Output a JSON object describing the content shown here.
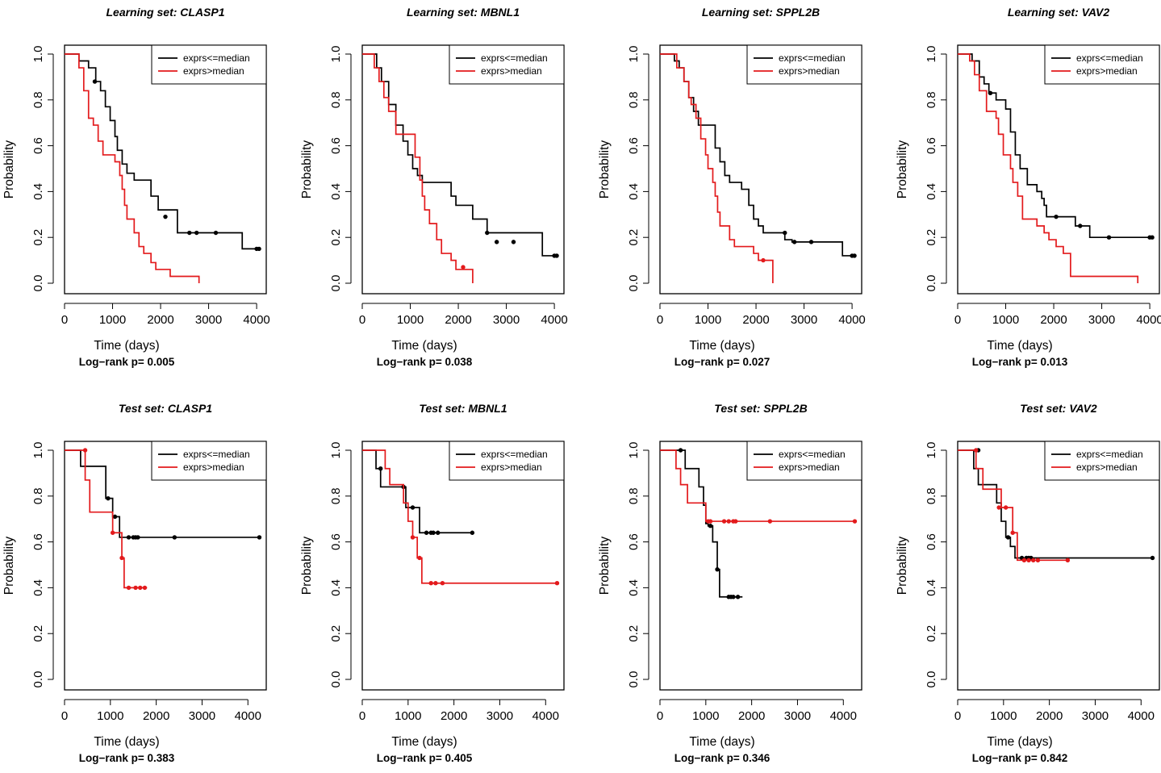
{
  "figure": {
    "legend_labels": [
      "exprs<=median",
      "exprs>median"
    ],
    "legend_position": "top-right",
    "series_colors": {
      "exprs<=median": "#000000",
      "exprs>median": "#e31a1c"
    }
  },
  "chart_data": [
    {
      "type": "line",
      "subtype": "kaplan-meier",
      "title": "Learning set:  CLASP1",
      "xlabel": "Time (days)",
      "ylabel": "Probability",
      "xlim": [
        0,
        4200
      ],
      "ylim": [
        0,
        1.0
      ],
      "xticks": [
        0,
        1000,
        2000,
        3000,
        4000
      ],
      "yticks": [
        0.0,
        0.2,
        0.4,
        0.6,
        0.8,
        1.0
      ],
      "ytick_labels": [
        "0.0",
        "0.2",
        "0.4",
        "0.6",
        "0.8",
        "1.0"
      ],
      "pvalue_text": "Log−rank p= 0.005",
      "series": [
        {
          "name": "exprs<=median",
          "color": "#000000",
          "x": [
            0,
            300,
            500,
            650,
            750,
            850,
            950,
            1050,
            1100,
            1200,
            1300,
            1450,
            1800,
            1950,
            2350,
            3700,
            4050
          ],
          "y": [
            1.0,
            0.97,
            0.94,
            0.88,
            0.84,
            0.77,
            0.71,
            0.64,
            0.58,
            0.52,
            0.48,
            0.45,
            0.38,
            0.32,
            0.22,
            0.15,
            0.15
          ],
          "censor_x": [
            630,
            2100,
            2600,
            2750,
            3150,
            4000,
            4050
          ],
          "censor_y": [
            0.88,
            0.29,
            0.22,
            0.22,
            0.22,
            0.15,
            0.15
          ]
        },
        {
          "name": "exprs>median",
          "color": "#e31a1c",
          "x": [
            0,
            300,
            400,
            500,
            600,
            700,
            800,
            1050,
            1150,
            1200,
            1250,
            1300,
            1450,
            1550,
            1650,
            1800,
            1900,
            2050,
            2200,
            2800,
            2800
          ],
          "y": [
            1.0,
            0.94,
            0.84,
            0.72,
            0.69,
            0.62,
            0.56,
            0.53,
            0.47,
            0.41,
            0.34,
            0.28,
            0.22,
            0.16,
            0.13,
            0.09,
            0.06,
            0.06,
            0.03,
            0.03,
            0.0
          ],
          "censor_x": [],
          "censor_y": []
        }
      ]
    },
    {
      "type": "line",
      "subtype": "kaplan-meier",
      "title": "Learning set:  MBNL1",
      "xlabel": "Time (days)",
      "ylabel": "Probability",
      "xlim": [
        0,
        4200
      ],
      "ylim": [
        0,
        1.0
      ],
      "xticks": [
        0,
        1000,
        2000,
        3000,
        4000
      ],
      "yticks": [
        0.0,
        0.2,
        0.4,
        0.6,
        0.8,
        1.0
      ],
      "ytick_labels": [
        "0.0",
        "0.2",
        "0.4",
        "0.6",
        "0.8",
        "1.0"
      ],
      "pvalue_text": "Log−rank p= 0.038",
      "series": [
        {
          "name": "exprs<=median",
          "color": "#000000",
          "x": [
            0,
            300,
            400,
            550,
            700,
            850,
            950,
            1050,
            1150,
            1250,
            1400,
            1850,
            1950,
            2300,
            2600,
            3750,
            4050
          ],
          "y": [
            1.0,
            0.94,
            0.88,
            0.78,
            0.69,
            0.62,
            0.56,
            0.5,
            0.47,
            0.44,
            0.44,
            0.38,
            0.34,
            0.28,
            0.22,
            0.12,
            0.12
          ],
          "censor_x": [
            2600,
            2800,
            3150,
            4000,
            4050
          ],
          "censor_y": [
            0.22,
            0.18,
            0.18,
            0.12,
            0.12
          ]
        },
        {
          "name": "exprs>median",
          "color": "#e31a1c",
          "x": [
            0,
            250,
            350,
            450,
            550,
            700,
            1100,
            1200,
            1250,
            1300,
            1400,
            1550,
            1650,
            1850,
            1950,
            2300,
            2300
          ],
          "y": [
            1.0,
            0.94,
            0.88,
            0.81,
            0.75,
            0.65,
            0.55,
            0.45,
            0.38,
            0.32,
            0.26,
            0.19,
            0.13,
            0.1,
            0.06,
            0.06,
            0.0
          ],
          "censor_x": [
            2100
          ],
          "censor_y": [
            0.07
          ]
        }
      ]
    },
    {
      "type": "line",
      "subtype": "kaplan-meier",
      "title": "Learning set:  SPPL2B",
      "xlabel": "Time (days)",
      "ylabel": "Probability",
      "xlim": [
        0,
        4200
      ],
      "ylim": [
        0,
        1.0
      ],
      "xticks": [
        0,
        1000,
        2000,
        3000,
        4000
      ],
      "yticks": [
        0.0,
        0.2,
        0.4,
        0.6,
        0.8,
        1.0
      ],
      "ytick_labels": [
        "0.0",
        "0.2",
        "0.4",
        "0.6",
        "0.8",
        "1.0"
      ],
      "pvalue_text": "Log−rank p= 0.027",
      "series": [
        {
          "name": "exprs<=median",
          "color": "#000000",
          "x": [
            0,
            300,
            400,
            500,
            600,
            700,
            800,
            1150,
            1250,
            1350,
            1450,
            1700,
            1850,
            1950,
            2050,
            2150,
            2600,
            2750,
            3800,
            4050
          ],
          "y": [
            1.0,
            0.97,
            0.94,
            0.88,
            0.81,
            0.75,
            0.69,
            0.59,
            0.53,
            0.47,
            0.44,
            0.41,
            0.34,
            0.28,
            0.25,
            0.22,
            0.19,
            0.18,
            0.12,
            0.12
          ],
          "censor_x": [
            2600,
            2800,
            3150,
            4000,
            4050
          ],
          "censor_y": [
            0.22,
            0.18,
            0.18,
            0.12,
            0.12
          ]
        },
        {
          "name": "exprs>median",
          "color": "#e31a1c",
          "x": [
            0,
            350,
            500,
            600,
            650,
            750,
            850,
            950,
            1000,
            1100,
            1150,
            1200,
            1250,
            1450,
            1550,
            1950,
            2050,
            2350,
            2350
          ],
          "y": [
            1.0,
            0.94,
            0.88,
            0.81,
            0.78,
            0.72,
            0.63,
            0.56,
            0.5,
            0.44,
            0.38,
            0.31,
            0.25,
            0.19,
            0.16,
            0.13,
            0.1,
            0.1,
            0.0
          ],
          "censor_x": [
            2150
          ],
          "censor_y": [
            0.1
          ]
        }
      ]
    },
    {
      "type": "line",
      "subtype": "kaplan-meier",
      "title": "Learning set:  VAV2",
      "xlabel": "Time (days)",
      "ylabel": "Probability",
      "xlim": [
        0,
        4200
      ],
      "ylim": [
        0,
        1.0
      ],
      "xticks": [
        0,
        1000,
        2000,
        3000,
        4000
      ],
      "yticks": [
        0.0,
        0.2,
        0.4,
        0.6,
        0.8,
        1.0
      ],
      "ytick_labels": [
        "0.0",
        "0.2",
        "0.4",
        "0.6",
        "0.8",
        "1.0"
      ],
      "pvalue_text": "Log−rank p= 0.013",
      "series": [
        {
          "name": "exprs<=median",
          "color": "#000000",
          "x": [
            0,
            300,
            450,
            550,
            650,
            800,
            1000,
            1100,
            1200,
            1300,
            1450,
            1650,
            1750,
            1800,
            1850,
            2050,
            2450,
            2750,
            4050
          ],
          "y": [
            1.0,
            0.97,
            0.9,
            0.87,
            0.83,
            0.8,
            0.76,
            0.66,
            0.56,
            0.5,
            0.43,
            0.4,
            0.37,
            0.34,
            0.29,
            0.29,
            0.25,
            0.2,
            0.2
          ],
          "censor_x": [
            680,
            2050,
            2550,
            3150,
            4000,
            4050
          ],
          "censor_y": [
            0.83,
            0.29,
            0.25,
            0.2,
            0.2,
            0.2
          ]
        },
        {
          "name": "exprs>median",
          "color": "#e31a1c",
          "x": [
            0,
            250,
            350,
            450,
            600,
            800,
            850,
            950,
            1100,
            1150,
            1250,
            1350,
            1550,
            1650,
            1800,
            1900,
            2050,
            2200,
            2350,
            3750,
            3750
          ],
          "y": [
            1.0,
            0.97,
            0.91,
            0.84,
            0.75,
            0.72,
            0.65,
            0.56,
            0.5,
            0.44,
            0.38,
            0.28,
            0.28,
            0.25,
            0.22,
            0.19,
            0.16,
            0.13,
            0.03,
            0.03,
            0.0
          ],
          "censor_x": [],
          "censor_y": []
        }
      ]
    },
    {
      "type": "line",
      "subtype": "kaplan-meier",
      "title": "Test set:  CLASP1",
      "xlabel": "Time (days)",
      "ylabel": "Probability",
      "xlim": [
        0,
        4400
      ],
      "ylim": [
        0,
        1.0
      ],
      "xticks": [
        0,
        1000,
        2000,
        3000,
        4000
      ],
      "yticks": [
        0.0,
        0.2,
        0.4,
        0.6,
        0.8,
        1.0
      ],
      "ytick_labels": [
        "0.0",
        "0.2",
        "0.4",
        "0.6",
        "0.8",
        "1.0"
      ],
      "pvalue_text": "Log−rank p= 0.383",
      "series": [
        {
          "name": "exprs<=median",
          "color": "#000000",
          "x": [
            0,
            350,
            900,
            1050,
            1200,
            4250
          ],
          "y": [
            1.0,
            0.93,
            0.79,
            0.71,
            0.62,
            0.62
          ],
          "censor_x": [
            950,
            1100,
            1400,
            1500,
            1550,
            1600,
            2400,
            4250
          ],
          "censor_y": [
            0.79,
            0.71,
            0.62,
            0.62,
            0.62,
            0.62,
            0.62,
            0.62
          ]
        },
        {
          "name": "exprs>median",
          "color": "#e31a1c",
          "x": [
            0,
            450,
            550,
            1050,
            1250,
            1300,
            1800
          ],
          "y": [
            1.0,
            0.87,
            0.73,
            0.64,
            0.53,
            0.4,
            0.4
          ],
          "censor_x": [
            450,
            1050,
            1250,
            1400,
            1550,
            1650,
            1750
          ],
          "censor_y": [
            1.0,
            0.64,
            0.53,
            0.4,
            0.4,
            0.4,
            0.4
          ]
        }
      ]
    },
    {
      "type": "line",
      "subtype": "kaplan-meier",
      "title": "Test set:  MBNL1",
      "xlabel": "Time (days)",
      "ylabel": "Probability",
      "xlim": [
        0,
        4400
      ],
      "ylim": [
        0,
        1.0
      ],
      "xticks": [
        0,
        1000,
        2000,
        3000,
        4000
      ],
      "yticks": [
        0.0,
        0.2,
        0.4,
        0.6,
        0.8,
        1.0
      ],
      "ytick_labels": [
        "0.0",
        "0.2",
        "0.4",
        "0.6",
        "0.8",
        "1.0"
      ],
      "pvalue_text": "Log−rank p= 0.405",
      "series": [
        {
          "name": "exprs<=median",
          "color": "#000000",
          "x": [
            0,
            300,
            400,
            950,
            1050,
            1250,
            2400
          ],
          "y": [
            1.0,
            0.92,
            0.84,
            0.75,
            0.75,
            0.64,
            0.64
          ],
          "censor_x": [
            400,
            900,
            1100,
            1400,
            1500,
            1550,
            1650,
            2400
          ],
          "censor_y": [
            0.92,
            0.84,
            0.75,
            0.64,
            0.64,
            0.64,
            0.64,
            0.64
          ]
        },
        {
          "name": "exprs>median",
          "color": "#e31a1c",
          "x": [
            0,
            500,
            600,
            900,
            1000,
            1100,
            1200,
            1300,
            4250
          ],
          "y": [
            1.0,
            0.92,
            0.85,
            0.77,
            0.69,
            0.62,
            0.53,
            0.42,
            0.42
          ],
          "censor_x": [
            1100,
            1250,
            1500,
            1600,
            1750,
            4250
          ],
          "censor_y": [
            0.62,
            0.53,
            0.42,
            0.42,
            0.42,
            0.42
          ]
        }
      ]
    },
    {
      "type": "line",
      "subtype": "kaplan-meier",
      "title": "Test set:  SPPL2B",
      "xlabel": "Time (days)",
      "ylabel": "Probability",
      "xlim": [
        0,
        4400
      ],
      "ylim": [
        0,
        1.0
      ],
      "xticks": [
        0,
        1000,
        2000,
        3000,
        4000
      ],
      "yticks": [
        0.0,
        0.2,
        0.4,
        0.6,
        0.8,
        1.0
      ],
      "ytick_labels": [
        "0.0",
        "0.2",
        "0.4",
        "0.6",
        "0.8",
        "1.0"
      ],
      "pvalue_text": "Log−rank p= 0.346",
      "series": [
        {
          "name": "exprs<=median",
          "color": "#000000",
          "x": [
            0,
            550,
            850,
            950,
            1000,
            1050,
            1150,
            1250,
            1300,
            1800
          ],
          "y": [
            1.0,
            0.92,
            0.84,
            0.76,
            0.68,
            0.67,
            0.6,
            0.48,
            0.36,
            0.36
          ],
          "censor_x": [
            450,
            1100,
            1250,
            1500,
            1550,
            1600,
            1700
          ],
          "censor_y": [
            1.0,
            0.67,
            0.48,
            0.36,
            0.36,
            0.36,
            0.36
          ]
        },
        {
          "name": "exprs>median",
          "color": "#e31a1c",
          "x": [
            0,
            350,
            450,
            600,
            1000,
            1050,
            4250
          ],
          "y": [
            1.0,
            0.92,
            0.85,
            0.77,
            0.69,
            0.69,
            0.69
          ],
          "censor_x": [
            1050,
            1100,
            1400,
            1500,
            1600,
            1650,
            2400,
            4250
          ],
          "censor_y": [
            0.69,
            0.69,
            0.69,
            0.69,
            0.69,
            0.69,
            0.69,
            0.69
          ]
        }
      ]
    },
    {
      "type": "line",
      "subtype": "kaplan-meier",
      "title": "Test set:  VAV2",
      "xlabel": "Time (days)",
      "ylabel": "Probability",
      "xlim": [
        0,
        4400
      ],
      "ylim": [
        0,
        1.0
      ],
      "xticks": [
        0,
        1000,
        2000,
        3000,
        4000
      ],
      "yticks": [
        0.0,
        0.2,
        0.4,
        0.6,
        0.8,
        1.0
      ],
      "ytick_labels": [
        "0.0",
        "0.2",
        "0.4",
        "0.6",
        "0.8",
        "1.0"
      ],
      "pvalue_text": "Log−rank p= 0.842",
      "series": [
        {
          "name": "exprs<=median",
          "color": "#000000",
          "x": [
            0,
            350,
            450,
            850,
            950,
            1050,
            1150,
            1250,
            1300,
            4250
          ],
          "y": [
            1.0,
            0.92,
            0.85,
            0.77,
            0.69,
            0.62,
            0.58,
            0.53,
            0.53,
            0.53
          ],
          "censor_x": [
            450,
            1100,
            1400,
            1500,
            1550,
            1600,
            4250
          ],
          "censor_y": [
            1.0,
            0.62,
            0.53,
            0.53,
            0.53,
            0.53,
            0.53
          ]
        },
        {
          "name": "exprs>median",
          "color": "#e31a1c",
          "x": [
            0,
            400,
            550,
            950,
            1100,
            1200,
            1300,
            2400
          ],
          "y": [
            1.0,
            0.92,
            0.83,
            0.75,
            0.75,
            0.64,
            0.52,
            0.52
          ],
          "censor_x": [
            400,
            900,
            1050,
            1200,
            1450,
            1550,
            1650,
            1750,
            2400
          ],
          "censor_y": [
            1.0,
            0.75,
            0.75,
            0.64,
            0.52,
            0.52,
            0.52,
            0.52,
            0.52
          ]
        }
      ]
    }
  ]
}
